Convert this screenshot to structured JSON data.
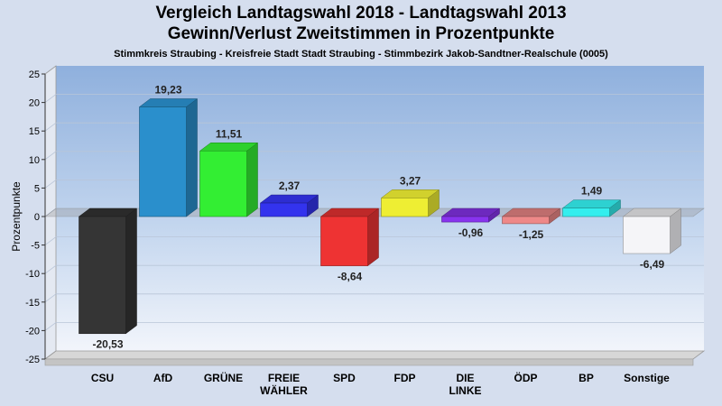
{
  "chart_data": {
    "type": "bar",
    "title_lines": [
      "Vergleich Landtagswahl 2018 - Landtagswahl 2013",
      "Gewinn/Verlust Zweitstimmen in Prozentpunkte"
    ],
    "subtitle": "Stimmkreis Straubing - Kreisfreie Stadt Stadt Straubing - Stimmbezirk Jakob-Sandtner-Realschule (0005)",
    "ylabel": "Prozentpunkte",
    "xlabel": "",
    "ylim": [
      -25,
      25
    ],
    "yticks": [
      25,
      20,
      15,
      10,
      5,
      0,
      -5,
      -10,
      -15,
      -20,
      -25
    ],
    "grid": true,
    "categories": [
      [
        "CSU"
      ],
      [
        "AfD"
      ],
      [
        "GRÜNE"
      ],
      [
        "FREIE",
        "WÄHLER"
      ],
      [
        "SPD"
      ],
      [
        "FDP"
      ],
      [
        "DIE",
        "LINKE"
      ],
      [
        "ÖDP"
      ],
      [
        "BP"
      ],
      [
        "Sonstige"
      ]
    ],
    "values": [
      -20.53,
      19.23,
      11.51,
      2.37,
      -8.64,
      3.27,
      -0.96,
      -1.25,
      1.49,
      -6.49
    ],
    "value_labels": [
      "-20,53",
      "19,23",
      "11,51",
      "2,37",
      "-8,64",
      "3,27",
      "-0,96",
      "-1,25",
      "1,49",
      "-6,49"
    ],
    "colors": [
      "#353535",
      "#2a8fcc",
      "#33ee33",
      "#3333ee",
      "#ee3333",
      "#eeee33",
      "#8833ee",
      "#ee8888",
      "#33eeee",
      "#f5f5f8"
    ]
  }
}
